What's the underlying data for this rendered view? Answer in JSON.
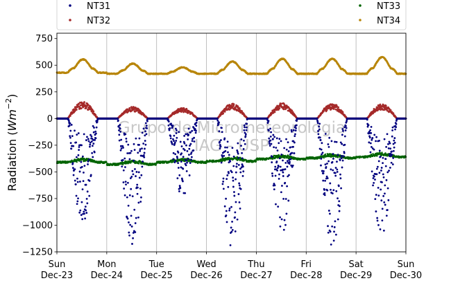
{
  "chart_data": {
    "type": "scatter",
    "title": "",
    "ylabel": "Radiation",
    "ylabel_unit_base": "Wm",
    "ylabel_unit_exp": "−2",
    "ylim": [
      -1250,
      800
    ],
    "yticks": [
      {
        "value": 750,
        "label": "750"
      },
      {
        "value": 500,
        "label": "500"
      },
      {
        "value": 250,
        "label": "250"
      },
      {
        "value": 0,
        "label": "0"
      },
      {
        "value": -250,
        "label": "−250"
      },
      {
        "value": -500,
        "label": "−500"
      },
      {
        "value": -750,
        "label": "−750"
      },
      {
        "value": -1000,
        "label": "−1000"
      },
      {
        "value": -1250,
        "label": "−1250"
      }
    ],
    "xlim_days": [
      0,
      7
    ],
    "xticks": [
      {
        "day": 0,
        "line1": "Sun",
        "line2": "Dec-23"
      },
      {
        "day": 1,
        "line1": "Mon",
        "line2": "Dec-24"
      },
      {
        "day": 2,
        "line1": "Tue",
        "line2": "Dec-25"
      },
      {
        "day": 3,
        "line1": "Wed",
        "line2": "Dec-26"
      },
      {
        "day": 4,
        "line1": "Thu",
        "line2": "Dec-27"
      },
      {
        "day": 5,
        "line1": "Fri",
        "line2": "Dec-28"
      },
      {
        "day": 6,
        "line1": "Sat",
        "line2": "Dec-29"
      },
      {
        "day": 7,
        "line1": "Sun",
        "line2": "Dec-30"
      }
    ],
    "grid": "vertical",
    "legend": {
      "placement": "top",
      "entries": [
        {
          "name": "NT31",
          "color": "#00007f"
        },
        {
          "name": "NT32",
          "color": "#a52a2a"
        },
        {
          "name": "NT33",
          "color": "#006400"
        },
        {
          "name": "NT34",
          "color": "#b8860b"
        }
      ]
    },
    "watermark": [
      "Grupo de Micrometeorologia",
      "IAG - USP"
    ],
    "series": [
      {
        "name": "NT31",
        "color": "#00007f",
        "description_values": {
          "night": 0,
          "daily_min": [
            -980,
            -1200,
            -740,
            -1230,
            -1090,
            -1200,
            -1100
          ]
        }
      },
      {
        "name": "NT32",
        "color": "#a52a2a",
        "description_values": {
          "night": 0,
          "daily_max": [
            160,
            110,
            100,
            140,
            145,
            140,
            135
          ]
        }
      },
      {
        "name": "NT33",
        "color": "#006400",
        "description_values": {
          "day": [
            -410,
            -430,
            -410,
            -400,
            -380,
            -370,
            -360
          ],
          "day_end": -380
        }
      },
      {
        "name": "NT34",
        "color": "#b8860b",
        "description_values": {
          "night": 420,
          "daily_max": [
            545,
            515,
            480,
            535,
            560,
            560,
            575
          ]
        }
      }
    ]
  }
}
